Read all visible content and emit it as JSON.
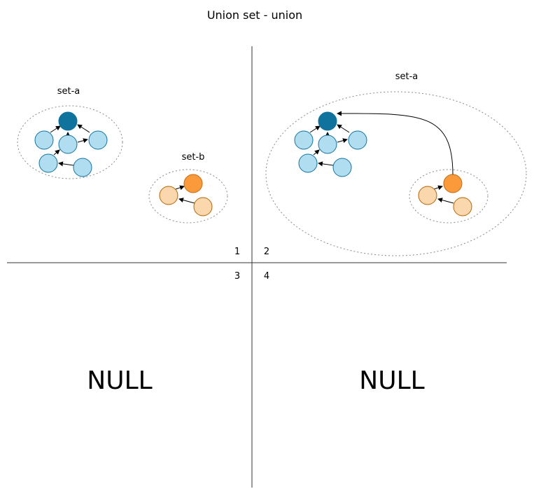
{
  "title": "Union set - union",
  "quadrants": {
    "q1": {
      "number": "1",
      "groups": {
        "set_a": "set-a",
        "set_b": "set-b"
      }
    },
    "q2": {
      "number": "2",
      "groups": {
        "set_a": "set-a"
      }
    },
    "q3": {
      "number": "3",
      "text": "NULL"
    },
    "q4": {
      "number": "4",
      "text": "NULL"
    }
  },
  "colors": {
    "light_blue": "#b1ddf0",
    "dark_blue": "#10739e",
    "orange": "#fa9a3b",
    "peach": "#fad7ac"
  }
}
